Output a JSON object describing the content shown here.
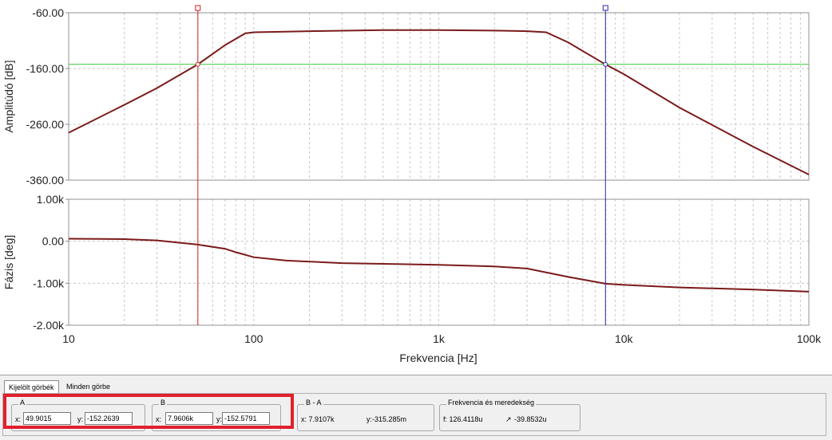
{
  "colors": {
    "curve": "#7b1a1a",
    "cursor_a": "#cc2222",
    "cursor_b": "#2a2aa8",
    "ref_line": "#3dcc3d",
    "grid": "#c8c8c8",
    "highlight": "#e1202c"
  },
  "chart_data": [
    {
      "type": "line",
      "ylabel": "Amplitúdó [dB]",
      "xscale": "log",
      "xlim": [
        10,
        100000
      ],
      "ylim": [
        -360,
        -60
      ],
      "yticks": [
        "-60.00",
        "-160.00",
        "-260.00",
        "-360.00"
      ],
      "grid": true,
      "reference_line_y": -152.26,
      "series": [
        {
          "x": [
            10,
            20,
            30,
            50,
            70,
            90,
            100,
            200,
            500,
            1000,
            2000,
            3000,
            3800,
            5000,
            7960,
            10000,
            20000,
            50000,
            100000
          ],
          "y": [
            -275,
            -225,
            -195,
            -152.3,
            -118,
            -97,
            -95,
            -93,
            -91,
            -91,
            -92,
            -93,
            -95,
            -113,
            -152.6,
            -170,
            -230,
            -300,
            -350
          ]
        }
      ]
    },
    {
      "type": "line",
      "ylabel": "Fázis [deg]",
      "xlabel": "Frekvencia [Hz]",
      "xscale": "log",
      "xlim": [
        10,
        100000
      ],
      "ylim": [
        -2000,
        1000
      ],
      "yticks": [
        "1.00k",
        "0.00",
        "-1.00k",
        "-2.00k"
      ],
      "xticks": [
        "10",
        "100",
        "1k",
        "10k",
        "100k"
      ],
      "grid": true,
      "series": [
        {
          "x": [
            10,
            20,
            30,
            50,
            70,
            80,
            100,
            150,
            300,
            1000,
            2000,
            3000,
            5000,
            7960,
            10000,
            20000,
            50000,
            100000
          ],
          "y": [
            60,
            50,
            20,
            -80,
            -180,
            -260,
            -380,
            -460,
            -520,
            -560,
            -600,
            -650,
            -850,
            -1010,
            -1040,
            -1100,
            -1150,
            -1200
          ]
        }
      ]
    }
  ],
  "cursors": {
    "a_x": 49.9015,
    "b_x": 7960.6
  },
  "panel": {
    "tabs": [
      "Kijelölt görbék",
      "Minden görbe"
    ],
    "a": {
      "title": "A",
      "x_label": "x:",
      "x_value": "49.9015",
      "y_label": "y:",
      "y_value": "-152.2639"
    },
    "b": {
      "title": "B",
      "x_label": "x:",
      "x_value": "7.9606k",
      "y_label": "y:",
      "y_value": "-152.5791"
    },
    "ba": {
      "title": "B - A",
      "x_text": "x:  7.9107k",
      "y_text": "y:-315.285m"
    },
    "freq": {
      "title": "Frekvencia és meredekség",
      "f_text": "f:  126.4118u",
      "slope_text": "-39.8532u"
    }
  }
}
